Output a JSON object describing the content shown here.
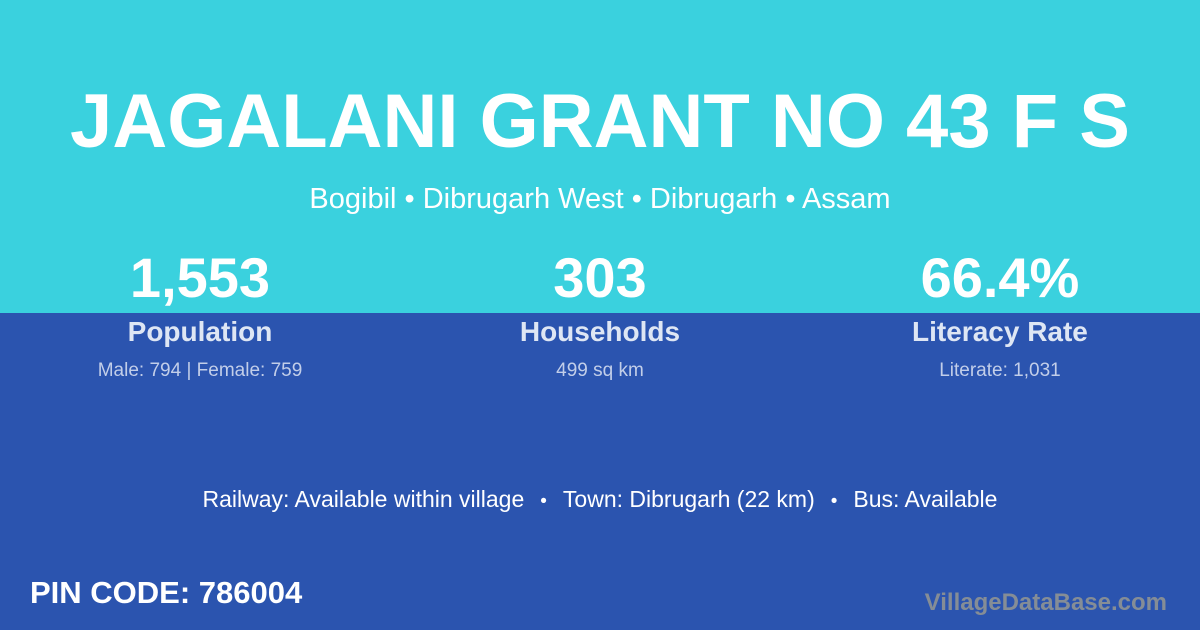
{
  "colors": {
    "top_bg": "#3ad1de",
    "bottom_bg": "#2b54af",
    "text_primary": "#ffffff",
    "label_color": "#dee6f4",
    "detail_color": "#c2cee9",
    "watermark_color": "#858d96"
  },
  "header": {
    "title": "JAGALANI GRANT NO 43 F S",
    "subtitle": "Bogibil • Dibrugarh West • Dibrugarh • Assam"
  },
  "stats": [
    {
      "value": "1,553",
      "label": "Population",
      "detail": "Male: 794 | Female: 759"
    },
    {
      "value": "303",
      "label": "Households",
      "detail": "499 sq km"
    },
    {
      "value": "66.4%",
      "label": "Literacy Rate",
      "detail": "Literate: 1,031"
    }
  ],
  "transport": {
    "separator": "•",
    "items": [
      "Railway: Available within village",
      "Town: Dibrugarh (22 km)",
      "Bus: Available"
    ]
  },
  "footer": {
    "pin_code": "PIN CODE: 786004",
    "watermark": "VillageDataBase.com"
  }
}
